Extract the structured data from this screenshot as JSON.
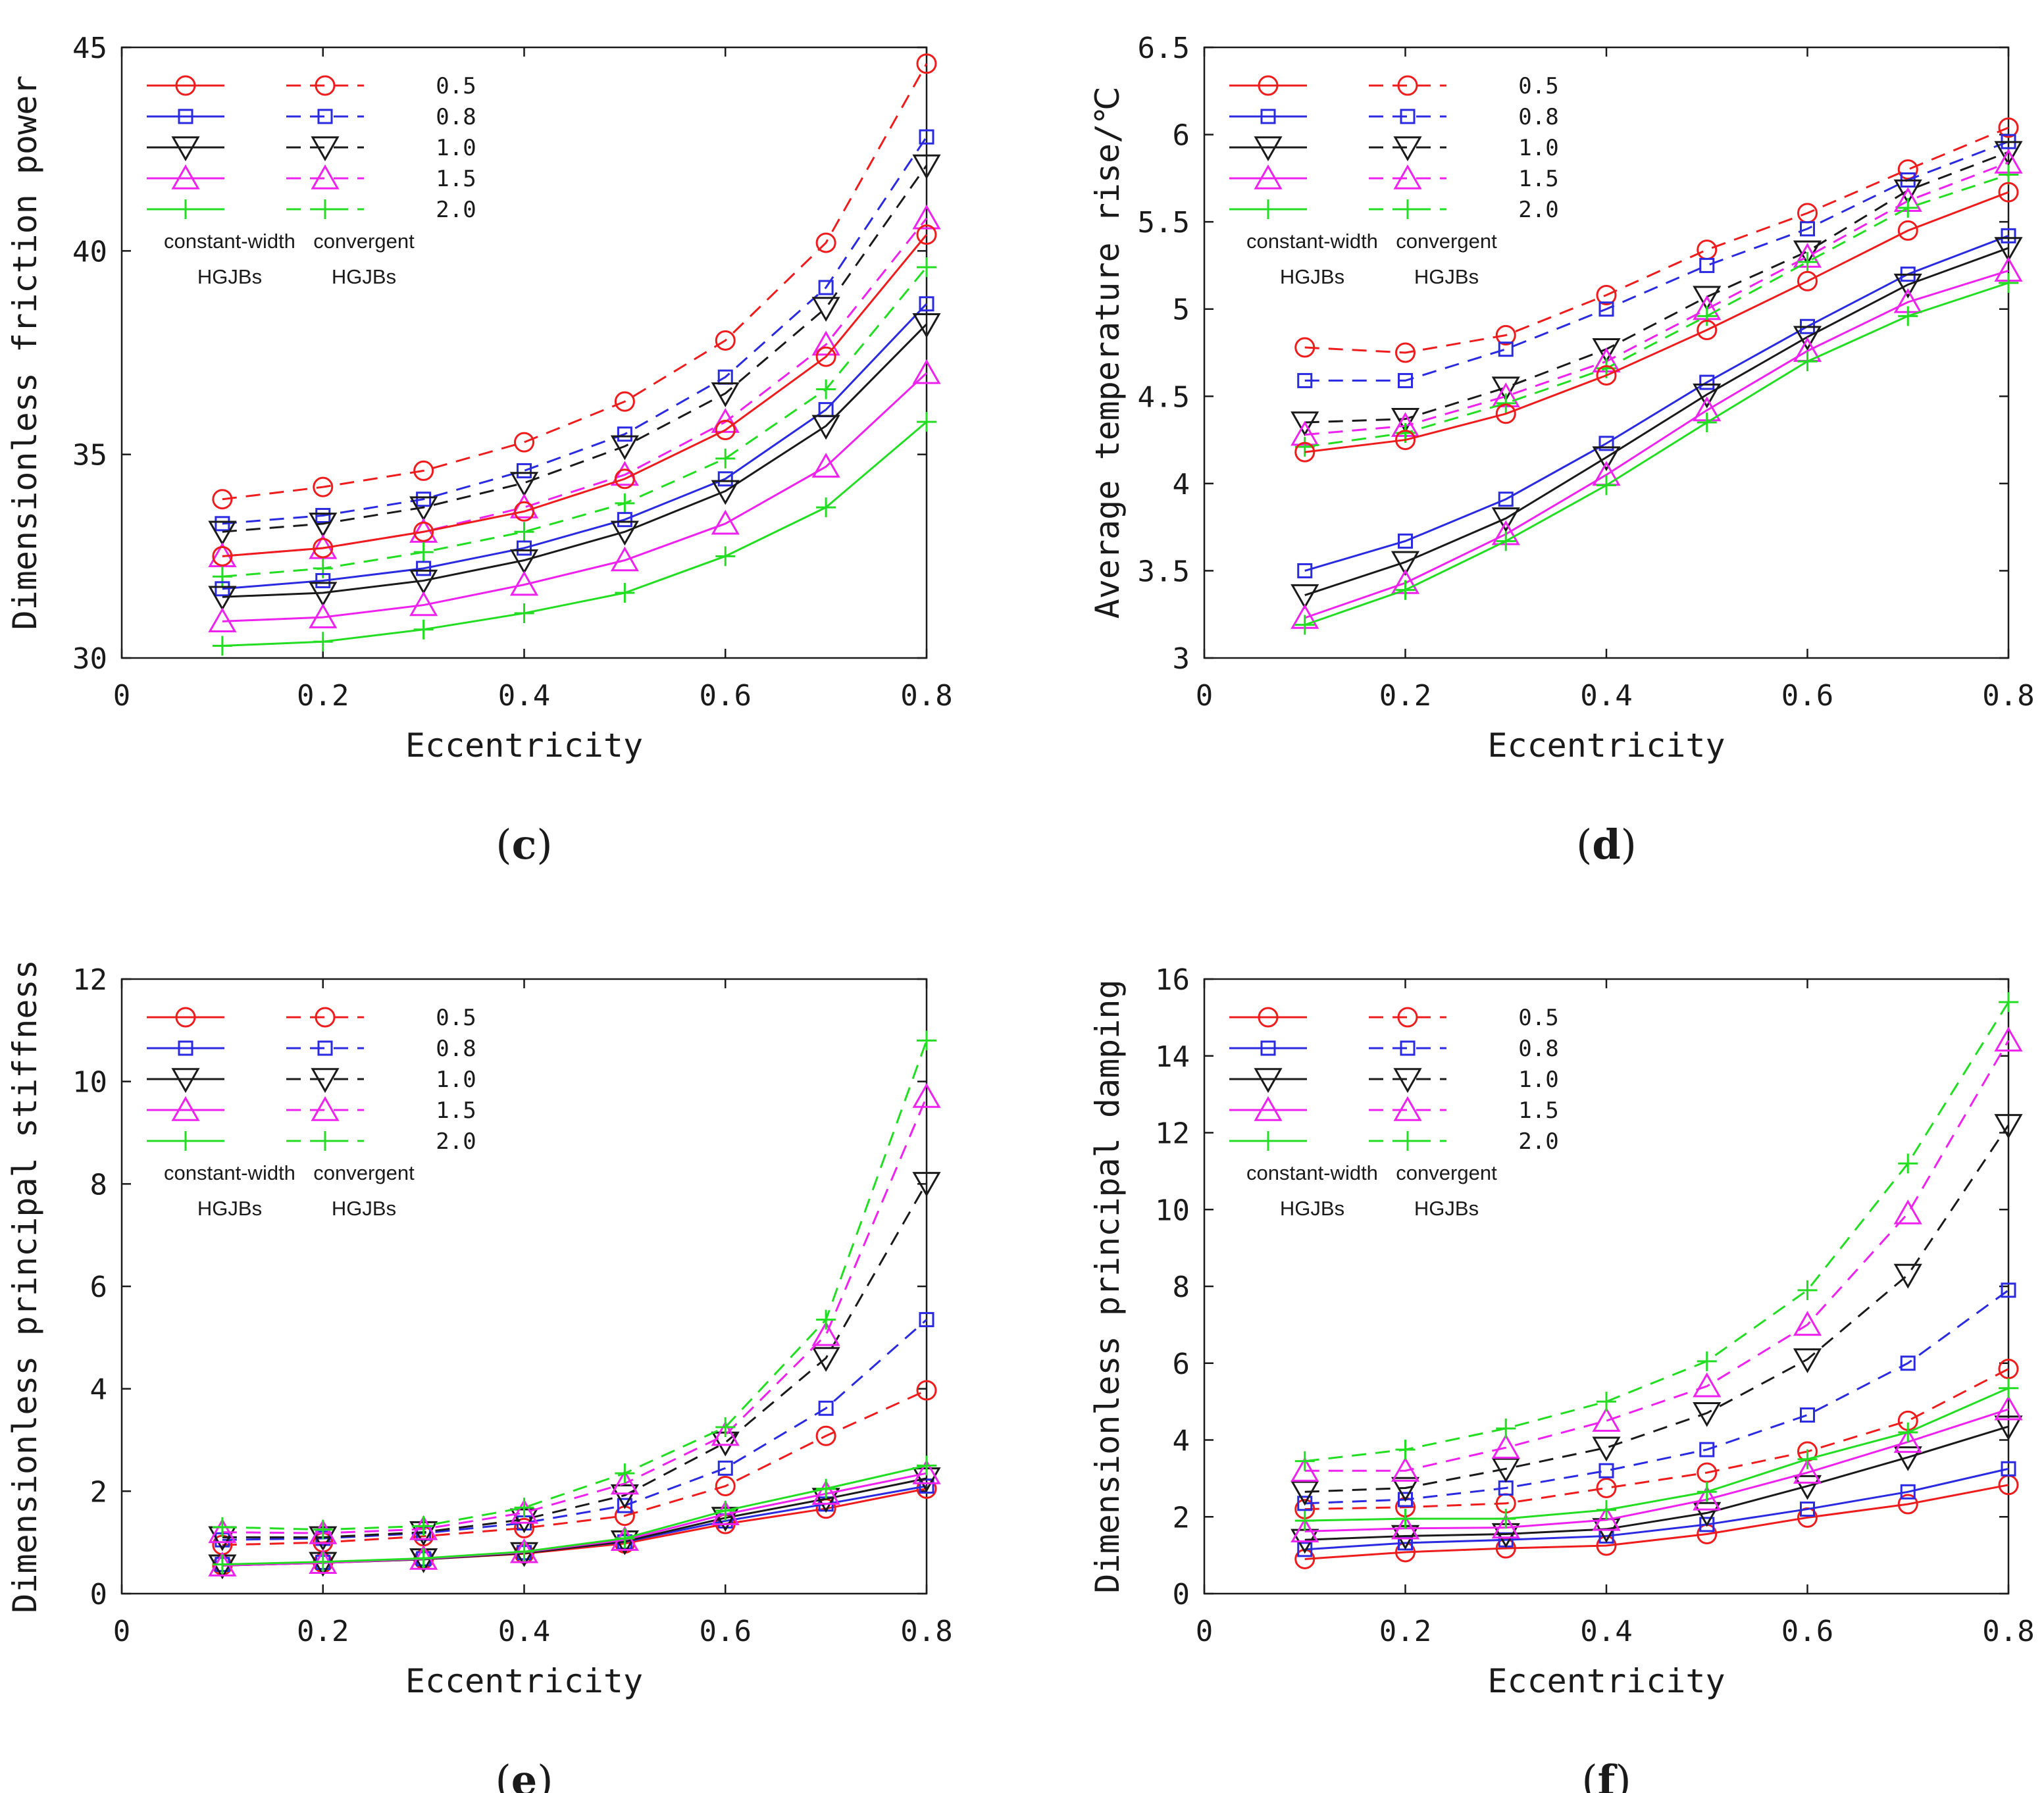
{
  "chart_data": [
    {
      "panel": "c",
      "caption_letter": "c",
      "type": "line",
      "xlabel": "Eccentricity",
      "ylabel": "Dimensionless friction power",
      "xlim": [
        0,
        0.8
      ],
      "ylim": [
        30,
        45
      ],
      "xticks": [
        0,
        0.2,
        0.4,
        0.6,
        0.8
      ],
      "yticks": [
        30,
        35,
        40,
        45
      ],
      "xtick_labels": [
        "0",
        "0.2",
        "0.4",
        "0.6",
        "0.8"
      ],
      "ytick_labels": [
        "30",
        "35",
        "40",
        "45"
      ],
      "x": [
        0.1,
        0.2,
        0.3,
        0.4,
        0.5,
        0.6,
        0.7,
        0.8
      ],
      "legend": {
        "values": [
          "0.5",
          "0.8",
          "1.0",
          "1.5",
          "2.0"
        ],
        "group_solid_line1": "constant-width",
        "group_solid_line2": "HGJBs",
        "group_dashed_line1": "convergent",
        "group_dashed_line2": "HGJBs"
      },
      "series": [
        {
          "name": "constant-width HGJBs 0.5",
          "style": "solid",
          "color": "#ee1c1c",
          "marker": "circle",
          "values": [
            32.5,
            32.7,
            33.1,
            33.6,
            34.4,
            35.6,
            37.4,
            40.4
          ]
        },
        {
          "name": "constant-width HGJBs 0.8",
          "style": "solid",
          "color": "#2a2ae0",
          "marker": "square",
          "values": [
            31.7,
            31.9,
            32.2,
            32.7,
            33.4,
            34.4,
            36.1,
            38.7
          ]
        },
        {
          "name": "constant-width HGJBs 1.0",
          "style": "solid",
          "color": "#1a1a1a",
          "marker": "triangle-down",
          "values": [
            31.5,
            31.6,
            31.9,
            32.4,
            33.1,
            34.1,
            35.7,
            38.2
          ]
        },
        {
          "name": "constant-width HGJBs 1.5",
          "style": "solid",
          "color": "#ee22ee",
          "marker": "triangle-up",
          "values": [
            30.9,
            31.0,
            31.3,
            31.8,
            32.4,
            33.3,
            34.7,
            37.0
          ]
        },
        {
          "name": "constant-width HGJBs 2.0",
          "style": "solid",
          "color": "#22dd22",
          "marker": "plus",
          "values": [
            30.3,
            30.4,
            30.7,
            31.1,
            31.6,
            32.5,
            33.7,
            35.8
          ]
        },
        {
          "name": "convergent HGJBs 0.5",
          "style": "dashed",
          "color": "#ee1c1c",
          "marker": "circle",
          "values": [
            33.9,
            34.2,
            34.6,
            35.3,
            36.3,
            37.8,
            40.2,
            44.6
          ]
        },
        {
          "name": "convergent HGJBs 0.8",
          "style": "dashed",
          "color": "#2a2ae0",
          "marker": "square",
          "values": [
            33.3,
            33.5,
            33.9,
            34.6,
            35.5,
            36.9,
            39.1,
            42.8
          ]
        },
        {
          "name": "convergent HGJBs 1.0",
          "style": "dashed",
          "color": "#1a1a1a",
          "marker": "triangle-down",
          "values": [
            33.1,
            33.3,
            33.7,
            34.3,
            35.2,
            36.5,
            38.6,
            42.1
          ]
        },
        {
          "name": "convergent HGJBs 1.5",
          "style": "dashed",
          "color": "#ee22ee",
          "marker": "triangle-up",
          "values": [
            32.5,
            32.7,
            33.1,
            33.7,
            34.5,
            35.8,
            37.7,
            40.8
          ]
        },
        {
          "name": "convergent HGJBs 2.0",
          "style": "dashed",
          "color": "#22dd22",
          "marker": "plus",
          "values": [
            32.0,
            32.2,
            32.6,
            33.1,
            33.8,
            34.9,
            36.6,
            39.6
          ]
        }
      ]
    },
    {
      "panel": "d",
      "caption_letter": "d",
      "type": "line",
      "xlabel": "Eccentricity",
      "ylabel": "Average temperature rise/℃",
      "xlim": [
        0,
        0.8
      ],
      "ylim": [
        3,
        6.5
      ],
      "xticks": [
        0,
        0.2,
        0.4,
        0.6,
        0.8
      ],
      "yticks": [
        3,
        3.5,
        4,
        4.5,
        5,
        5.5,
        6,
        6.5
      ],
      "xtick_labels": [
        "0",
        "0.2",
        "0.4",
        "0.6",
        "0.8"
      ],
      "ytick_labels": [
        "3",
        "3.5",
        "4",
        "4.5",
        "5",
        "5.5",
        "6",
        "6.5"
      ],
      "x": [
        0.1,
        0.2,
        0.3,
        0.4,
        0.5,
        0.6,
        0.7,
        0.8
      ],
      "legend": {
        "values": [
          "0.5",
          "0.8",
          "1.0",
          "1.5",
          "2.0"
        ],
        "group_solid_line1": "constant-width",
        "group_solid_line2": "HGJBs",
        "group_dashed_line1": "convergent",
        "group_dashed_line2": "HGJBs"
      },
      "series": [
        {
          "name": "constant-width HGJBs 0.5",
          "style": "solid",
          "color": "#ee1c1c",
          "marker": "circle",
          "values": [
            4.18,
            4.25,
            4.4,
            4.62,
            4.88,
            5.16,
            5.45,
            5.67
          ]
        },
        {
          "name": "constant-width HGJBs 0.8",
          "style": "solid",
          "color": "#2a2ae0",
          "marker": "square",
          "values": [
            3.5,
            3.67,
            3.91,
            4.23,
            4.58,
            4.9,
            5.2,
            5.42
          ]
        },
        {
          "name": "constant-width HGJBs 1.0",
          "style": "solid",
          "color": "#1a1a1a",
          "marker": "triangle-down",
          "values": [
            3.36,
            3.55,
            3.8,
            4.15,
            4.51,
            4.84,
            5.14,
            5.35
          ]
        },
        {
          "name": "constant-width HGJBs 1.5",
          "style": "solid",
          "color": "#ee22ee",
          "marker": "triangle-up",
          "values": [
            3.23,
            3.43,
            3.71,
            4.05,
            4.42,
            4.76,
            5.04,
            5.22
          ]
        },
        {
          "name": "constant-width HGJBs 2.0",
          "style": "solid",
          "color": "#22dd22",
          "marker": "plus",
          "values": [
            3.19,
            3.39,
            3.67,
            3.99,
            4.35,
            4.7,
            4.96,
            5.15
          ]
        },
        {
          "name": "convergent HGJBs 0.5",
          "style": "dashed",
          "color": "#ee1c1c",
          "marker": "circle",
          "values": [
            4.78,
            4.75,
            4.85,
            5.08,
            5.34,
            5.55,
            5.8,
            6.04
          ]
        },
        {
          "name": "convergent HGJBs 0.8",
          "style": "dashed",
          "color": "#2a2ae0",
          "marker": "square",
          "values": [
            4.59,
            4.59,
            4.77,
            5.0,
            5.25,
            5.46,
            5.74,
            5.96
          ]
        },
        {
          "name": "convergent HGJBs 1.0",
          "style": "dashed",
          "color": "#1a1a1a",
          "marker": "triangle-down",
          "values": [
            4.35,
            4.37,
            4.55,
            4.77,
            5.07,
            5.33,
            5.68,
            5.9
          ]
        },
        {
          "name": "convergent HGJBs 1.5",
          "style": "dashed",
          "color": "#ee22ee",
          "marker": "triangle-up",
          "values": [
            4.28,
            4.33,
            4.5,
            4.7,
            5.0,
            5.3,
            5.62,
            5.84
          ]
        },
        {
          "name": "convergent HGJBs 2.0",
          "style": "dashed",
          "color": "#22dd22",
          "marker": "plus",
          "values": [
            4.21,
            4.29,
            4.46,
            4.66,
            4.96,
            5.27,
            5.58,
            5.77
          ]
        }
      ]
    },
    {
      "panel": "e",
      "caption_letter": "e",
      "type": "line",
      "xlabel": "Eccentricity",
      "ylabel": "Dimensionless principal stiffness",
      "xlim": [
        0,
        0.8
      ],
      "ylim": [
        0,
        12
      ],
      "xticks": [
        0,
        0.2,
        0.4,
        0.6,
        0.8
      ],
      "yticks": [
        0,
        2,
        4,
        6,
        8,
        10,
        12
      ],
      "xtick_labels": [
        "0",
        "0.2",
        "0.4",
        "0.6",
        "0.8"
      ],
      "ytick_labels": [
        "0",
        "2",
        "4",
        "6",
        "8",
        "10",
        "12"
      ],
      "x": [
        0.1,
        0.2,
        0.3,
        0.4,
        0.5,
        0.6,
        0.7,
        0.8
      ],
      "legend": {
        "values": [
          "0.5",
          "0.8",
          "1.0",
          "1.5",
          "2.0"
        ],
        "group_solid_line1": "constant-width",
        "group_solid_line2": "HGJBs",
        "group_dashed_line1": "convergent",
        "group_dashed_line2": "HGJBs"
      },
      "series": [
        {
          "name": "constant-width HGJBs 0.5",
          "style": "solid",
          "color": "#ee1c1c",
          "marker": "circle",
          "values": [
            0.55,
            0.6,
            0.67,
            0.78,
            0.98,
            1.36,
            1.66,
            2.05
          ]
        },
        {
          "name": "constant-width HGJBs 0.8",
          "style": "solid",
          "color": "#2a2ae0",
          "marker": "square",
          "values": [
            0.57,
            0.61,
            0.68,
            0.8,
            1.01,
            1.42,
            1.75,
            2.1
          ]
        },
        {
          "name": "constant-width HGJBs 1.0",
          "style": "solid",
          "color": "#1a1a1a",
          "marker": "triangle-down",
          "values": [
            0.55,
            0.6,
            0.67,
            0.79,
            1.02,
            1.48,
            1.85,
            2.25
          ]
        },
        {
          "name": "constant-width HGJBs 1.5",
          "style": "solid",
          "color": "#ee22ee",
          "marker": "triangle-up",
          "values": [
            0.55,
            0.6,
            0.68,
            0.81,
            1.05,
            1.55,
            1.95,
            2.35
          ]
        },
        {
          "name": "constant-width HGJBs 2.0",
          "style": "solid",
          "color": "#22dd22",
          "marker": "plus",
          "values": [
            0.57,
            0.62,
            0.69,
            0.82,
            1.08,
            1.62,
            2.05,
            2.5
          ]
        },
        {
          "name": "convergent HGJBs 0.5",
          "style": "dashed",
          "color": "#ee1c1c",
          "marker": "circle",
          "values": [
            0.95,
            1.0,
            1.12,
            1.28,
            1.52,
            2.1,
            3.08,
            3.97
          ]
        },
        {
          "name": "convergent HGJBs 0.8",
          "style": "dashed",
          "color": "#2a2ae0",
          "marker": "square",
          "values": [
            1.05,
            1.08,
            1.18,
            1.38,
            1.72,
            2.45,
            3.62,
            5.35
          ]
        },
        {
          "name": "convergent HGJBs 1.0",
          "style": "dashed",
          "color": "#1a1a1a",
          "marker": "triangle-down",
          "values": [
            1.1,
            1.1,
            1.2,
            1.45,
            1.92,
            2.95,
            4.6,
            8.02
          ]
        },
        {
          "name": "convergent HGJBs 1.5",
          "style": "dashed",
          "color": "#ee22ee",
          "marker": "triangle-up",
          "values": [
            1.2,
            1.18,
            1.26,
            1.58,
            2.15,
            3.1,
            5.05,
            9.7
          ]
        },
        {
          "name": "convergent HGJBs 2.0",
          "style": "dashed",
          "color": "#22dd22",
          "marker": "plus",
          "values": [
            1.3,
            1.25,
            1.32,
            1.68,
            2.35,
            3.25,
            5.35,
            10.8
          ]
        }
      ]
    },
    {
      "panel": "f",
      "caption_letter": "f",
      "type": "line",
      "xlabel": "Eccentricity",
      "ylabel": "Dimensionless principal damping",
      "xlim": [
        0,
        0.8
      ],
      "ylim": [
        0,
        16
      ],
      "xticks": [
        0,
        0.2,
        0.4,
        0.6,
        0.8
      ],
      "yticks": [
        0,
        2,
        4,
        6,
        8,
        10,
        12,
        14,
        16
      ],
      "xtick_labels": [
        "0",
        "0.2",
        "0.4",
        "0.6",
        "0.8"
      ],
      "ytick_labels": [
        "0",
        "2",
        "4",
        "6",
        "8",
        "10",
        "12",
        "14",
        "16"
      ],
      "x": [
        0.1,
        0.2,
        0.3,
        0.4,
        0.5,
        0.6,
        0.7,
        0.8
      ],
      "legend": {
        "values": [
          "0.5",
          "0.8",
          "1.0",
          "1.5",
          "2.0"
        ],
        "group_solid_line1": "constant-width",
        "group_solid_line2": "HGJBs",
        "group_dashed_line1": "convergent",
        "group_dashed_line2": "HGJBs"
      },
      "series": [
        {
          "name": "constant-width HGJBs 0.5",
          "style": "solid",
          "color": "#ee1c1c",
          "marker": "circle",
          "values": [
            0.9,
            1.08,
            1.18,
            1.25,
            1.55,
            1.98,
            2.33,
            2.83
          ]
        },
        {
          "name": "constant-width HGJBs 0.8",
          "style": "solid",
          "color": "#2a2ae0",
          "marker": "square",
          "values": [
            1.15,
            1.32,
            1.4,
            1.5,
            1.8,
            2.2,
            2.65,
            3.25
          ]
        },
        {
          "name": "constant-width HGJBs 1.0",
          "style": "solid",
          "color": "#1a1a1a",
          "marker": "triangle-down",
          "values": [
            1.4,
            1.5,
            1.55,
            1.68,
            2.1,
            2.8,
            3.55,
            4.35
          ]
        },
        {
          "name": "constant-width HGJBs 1.5",
          "style": "solid",
          "color": "#ee22ee",
          "marker": "triangle-up",
          "values": [
            1.62,
            1.7,
            1.72,
            1.92,
            2.45,
            3.15,
            3.95,
            4.8
          ]
        },
        {
          "name": "constant-width HGJBs 2.0",
          "style": "solid",
          "color": "#22dd22",
          "marker": "plus",
          "values": [
            1.9,
            1.95,
            1.95,
            2.18,
            2.65,
            3.5,
            4.2,
            5.35
          ]
        },
        {
          "name": "convergent HGJBs 0.5",
          "style": "dashed",
          "color": "#ee1c1c",
          "marker": "circle",
          "values": [
            2.2,
            2.25,
            2.35,
            2.75,
            3.15,
            3.7,
            4.5,
            5.85
          ]
        },
        {
          "name": "convergent HGJBs 0.8",
          "style": "dashed",
          "color": "#2a2ae0",
          "marker": "square",
          "values": [
            2.35,
            2.45,
            2.75,
            3.2,
            3.75,
            4.65,
            6.0,
            7.9
          ]
        },
        {
          "name": "convergent HGJBs 1.0",
          "style": "dashed",
          "color": "#1a1a1a",
          "marker": "triangle-down",
          "values": [
            2.65,
            2.75,
            3.25,
            3.8,
            4.7,
            6.1,
            8.3,
            12.2
          ]
        },
        {
          "name": "convergent HGJBs 1.5",
          "style": "dashed",
          "color": "#ee22ee",
          "marker": "triangle-up",
          "values": [
            3.2,
            3.2,
            3.8,
            4.5,
            5.4,
            7.0,
            9.9,
            14.4
          ]
        },
        {
          "name": "convergent HGJBs 2.0",
          "style": "dashed",
          "color": "#22dd22",
          "marker": "plus",
          "values": [
            3.45,
            3.75,
            4.3,
            5.0,
            6.05,
            7.9,
            11.2,
            15.4
          ]
        }
      ]
    }
  ]
}
